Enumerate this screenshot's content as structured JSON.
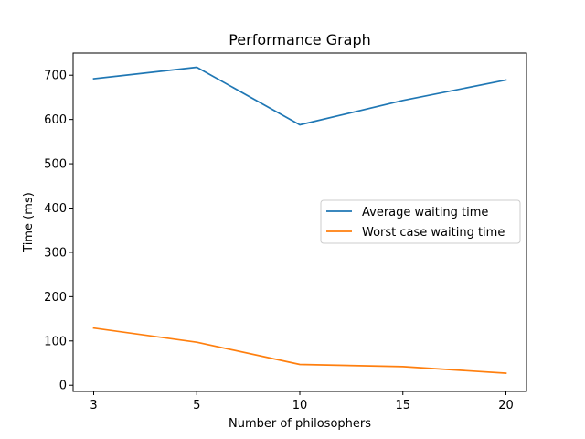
{
  "chart_data": {
    "type": "line",
    "title": "Performance Graph",
    "xlabel": "Number of philosophers",
    "ylabel": "Time (ms)",
    "categories": [
      "3",
      "5",
      "10",
      "15",
      "20"
    ],
    "x_scale": "categorical",
    "ylim": [
      -14,
      750
    ],
    "yticks": [
      0,
      100,
      200,
      300,
      400,
      500,
      600,
      700
    ],
    "grid": false,
    "legend_position": "center-right",
    "series": [
      {
        "name": "Average waiting time",
        "color": "#1f77b4",
        "values": [
          692,
          718,
          588,
          643,
          689
        ]
      },
      {
        "name": "Worst case waiting time",
        "color": "#ff7f0e",
        "values": [
          129,
          97,
          47,
          42,
          27
        ]
      }
    ]
  }
}
